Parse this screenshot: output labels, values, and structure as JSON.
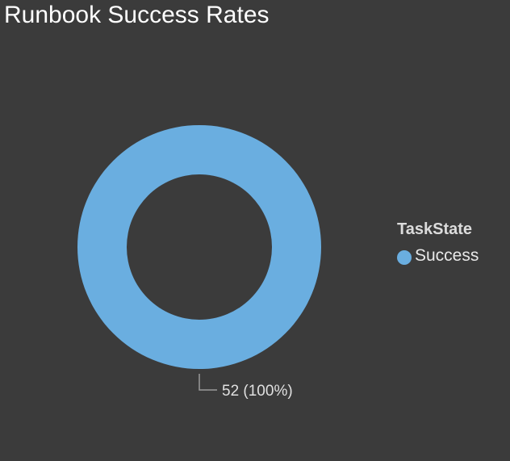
{
  "chart_data": {
    "type": "pie",
    "title": "Runbook Success Rates",
    "donut": true,
    "legend": {
      "title": "TaskState",
      "placement": "right"
    },
    "slices": [
      {
        "label": "Success",
        "value": 52,
        "percent": 100,
        "data_label": "52 (100%)",
        "color": "#6aaee0"
      }
    ]
  },
  "theme": {
    "background": "#3b3b3b"
  }
}
